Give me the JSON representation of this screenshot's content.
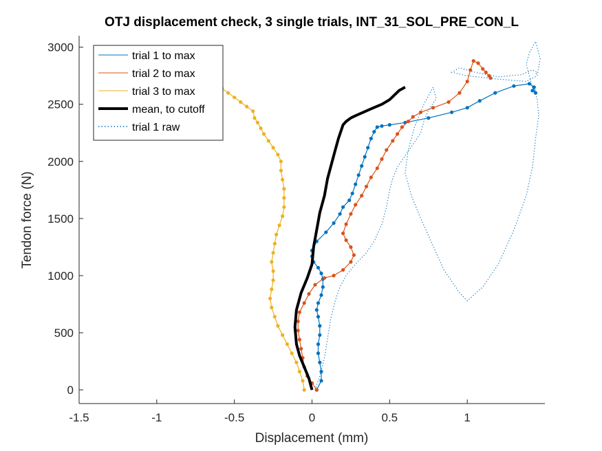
{
  "chart_data": {
    "type": "line",
    "title": "OTJ displacement check, 3 single trials, INT_31_SOL_PRE_CON_L",
    "xlabel": "Displacement (mm)",
    "ylabel": "Tendon force (N)",
    "xlim": [
      -1.5,
      1.5
    ],
    "ylim": [
      -120,
      3100
    ],
    "xticks": [
      -1.5,
      -1,
      -0.5,
      0,
      0.5,
      1
    ],
    "xtick_labels": [
      "-1.5",
      "-1",
      "-0.5",
      "0",
      "0.5",
      "1"
    ],
    "yticks": [
      0,
      500,
      1000,
      1500,
      2000,
      2500,
      3000
    ],
    "ytick_labels": [
      "0",
      "500",
      "1000",
      "1500",
      "2000",
      "2500",
      "3000"
    ],
    "grid": false,
    "legend_position": "top-left",
    "colors": {
      "trial1": "#0072BD",
      "trial2": "#D95319",
      "trial3": "#EDB120",
      "mean": "#000000",
      "trial1_raw": "#0072BD"
    },
    "series": [
      {
        "name": "trial 1 to max",
        "style": "solid-markers",
        "x": [
          0.03,
          0.06,
          0.06,
          0.05,
          0.04,
          0.04,
          0.05,
          0.05,
          0.04,
          0.03,
          0.04,
          0.06,
          0.07,
          0.07,
          0.06,
          0.04,
          0.01,
          0.0,
          0.0,
          0.03,
          0.09,
          0.14,
          0.18,
          0.2,
          0.24,
          0.26,
          0.28,
          0.3,
          0.32,
          0.34,
          0.36,
          0.38,
          0.4,
          0.42,
          0.45,
          0.5,
          0.6,
          0.75,
          0.9,
          1.0,
          1.08,
          1.18,
          1.3,
          1.4,
          1.43,
          1.44,
          1.42,
          1.43
        ],
        "y": [
          0,
          80,
          160,
          240,
          320,
          400,
          480,
          560,
          640,
          700,
          760,
          830,
          900,
          970,
          1020,
          1070,
          1120,
          1170,
          1220,
          1300,
          1380,
          1460,
          1540,
          1600,
          1660,
          1720,
          1800,
          1880,
          1960,
          2040,
          2120,
          2200,
          2260,
          2300,
          2310,
          2320,
          2340,
          2380,
          2430,
          2470,
          2530,
          2600,
          2660,
          2680,
          2650,
          2600,
          2620,
          2650
        ]
      },
      {
        "name": "trial 2 to max",
        "style": "solid-markers",
        "x": [
          0.03,
          0.0,
          -0.03,
          -0.05,
          -0.06,
          -0.07,
          -0.08,
          -0.09,
          -0.09,
          -0.08,
          -0.05,
          -0.02,
          0.02,
          0.08,
          0.14,
          0.2,
          0.25,
          0.27,
          0.25,
          0.22,
          0.2,
          0.22,
          0.25,
          0.28,
          0.32,
          0.35,
          0.38,
          0.42,
          0.45,
          0.48,
          0.52,
          0.55,
          0.58,
          0.62,
          0.65,
          0.7,
          0.78,
          0.88,
          0.95,
          1.0,
          1.02,
          1.04,
          1.07,
          1.1,
          1.12,
          1.14,
          1.15
        ],
        "y": [
          0,
          60,
          120,
          200,
          280,
          360,
          440,
          520,
          600,
          680,
          760,
          840,
          920,
          980,
          1000,
          1050,
          1120,
          1180,
          1250,
          1310,
          1370,
          1450,
          1540,
          1620,
          1700,
          1780,
          1860,
          1940,
          2020,
          2100,
          2180,
          2240,
          2300,
          2350,
          2390,
          2430,
          2470,
          2520,
          2600,
          2700,
          2800,
          2880,
          2860,
          2810,
          2780,
          2750,
          2730
        ]
      },
      {
        "name": "trial 3 to max",
        "style": "solid-markers",
        "x": [
          -0.05,
          -0.06,
          -0.08,
          -0.1,
          -0.13,
          -0.16,
          -0.19,
          -0.22,
          -0.24,
          -0.26,
          -0.27,
          -0.26,
          -0.25,
          -0.25,
          -0.26,
          -0.25,
          -0.24,
          -0.23,
          -0.21,
          -0.19,
          -0.18,
          -0.18,
          -0.18,
          -0.19,
          -0.2,
          -0.2,
          -0.22,
          -0.25,
          -0.28,
          -0.31,
          -0.33,
          -0.35,
          -0.37,
          -0.38,
          -0.42,
          -0.46,
          -0.5,
          -0.54,
          -0.58
        ],
        "y": [
          0,
          80,
          160,
          240,
          320,
          400,
          480,
          560,
          640,
          720,
          800,
          880,
          960,
          1040,
          1120,
          1200,
          1280,
          1360,
          1440,
          1520,
          1600,
          1680,
          1760,
          1840,
          1920,
          2000,
          2060,
          2120,
          2180,
          2240,
          2290,
          2340,
          2380,
          2440,
          2480,
          2520,
          2560,
          2600,
          2640
        ]
      },
      {
        "name": "mean, to cutoff",
        "style": "thick",
        "x": [
          0.0,
          -0.02,
          -0.05,
          -0.08,
          -0.1,
          -0.11,
          -0.1,
          -0.07,
          -0.03,
          0.0,
          0.01,
          0.03,
          0.05,
          0.08,
          0.1,
          0.13,
          0.15,
          0.17,
          0.19,
          0.2,
          0.22,
          0.25,
          0.28,
          0.33,
          0.38,
          0.45,
          0.5,
          0.53,
          0.56,
          0.6
        ],
        "y": [
          0,
          100,
          200,
          300,
          400,
          550,
          700,
          850,
          980,
          1100,
          1250,
          1400,
          1550,
          1700,
          1850,
          2000,
          2100,
          2200,
          2280,
          2320,
          2350,
          2380,
          2400,
          2430,
          2460,
          2500,
          2540,
          2580,
          2620,
          2650
        ]
      },
      {
        "name": "trial 1 raw",
        "style": "dotted",
        "x": [
          0.02,
          0.05,
          0.08,
          0.1,
          0.12,
          0.15,
          0.18,
          0.22,
          0.28,
          0.35,
          0.4,
          0.45,
          0.48,
          0.5,
          0.52,
          0.55,
          0.6,
          0.65,
          0.7,
          0.72,
          0.75,
          0.8,
          0.78,
          0.72,
          0.66,
          0.62,
          0.6,
          0.64,
          0.7,
          0.75,
          0.8,
          0.85,
          0.9,
          0.95,
          1.0,
          1.1,
          1.2,
          1.3,
          1.38,
          1.42,
          1.44,
          1.46,
          1.45,
          1.42,
          1.4,
          1.38,
          1.4,
          1.44,
          1.47,
          1.45,
          1.38,
          1.2,
          1.0,
          0.9,
          0.95,
          1.05,
          1.2,
          1.35,
          1.42,
          1.45,
          1.44
        ],
        "y": [
          0,
          120,
          280,
          450,
          620,
          780,
          900,
          1000,
          1100,
          1200,
          1300,
          1450,
          1600,
          1750,
          1850,
          1950,
          2050,
          2150,
          2250,
          2350,
          2450,
          2550,
          2650,
          2500,
          2300,
          2100,
          1900,
          1700,
          1500,
          1350,
          1200,
          1050,
          950,
          850,
          780,
          900,
          1100,
          1400,
          1700,
          1950,
          2200,
          2400,
          2550,
          2650,
          2750,
          2850,
          2950,
          3050,
          2900,
          2750,
          2700,
          2720,
          2750,
          2780,
          2820,
          2780,
          2740,
          2760,
          2800,
          2780,
          2760
        ]
      }
    ]
  }
}
